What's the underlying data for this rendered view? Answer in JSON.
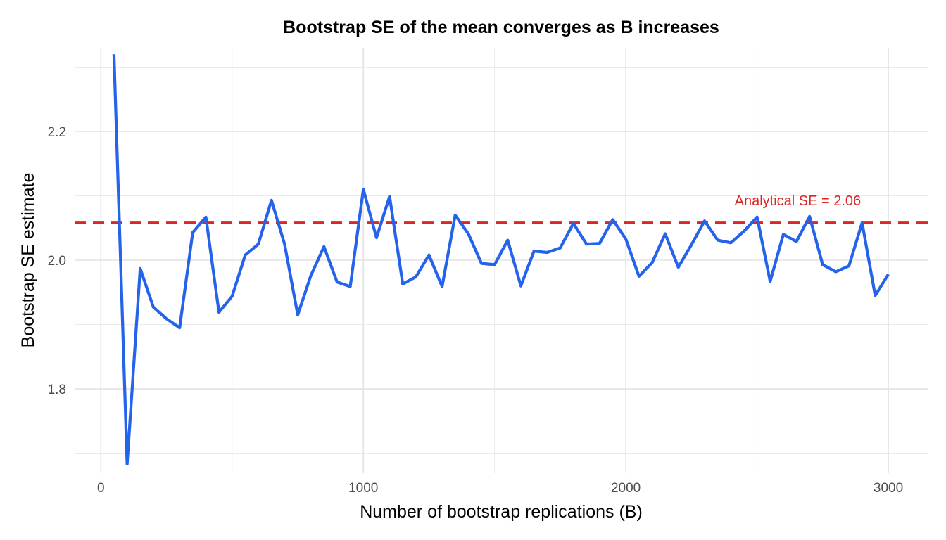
{
  "chart_data": {
    "type": "line",
    "title": "Bootstrap SE of the mean converges as B increases",
    "xlabel": "Number of bootstrap replications (B)",
    "ylabel": "Bootstrap SE estimate",
    "xlim": [
      -100,
      3150
    ],
    "ylim": [
      1.67,
      2.33
    ],
    "x_ticks": [
      0,
      1000,
      2000,
      3000
    ],
    "x_tick_labels": [
      "0",
      "1000",
      "2000",
      "3000"
    ],
    "y_ticks": [
      1.8,
      2.0,
      2.2
    ],
    "y_tick_labels": [
      "1.8",
      "2.0",
      "2.2"
    ],
    "grid": true,
    "series": [
      {
        "color": "#2563EB",
        "x": [
          50,
          100,
          150,
          200,
          250,
          300,
          350,
          400,
          450,
          500,
          550,
          600,
          650,
          700,
          750,
          800,
          850,
          900,
          950,
          1000,
          1050,
          1100,
          1150,
          1200,
          1250,
          1300,
          1350,
          1400,
          1450,
          1500,
          1550,
          1600,
          1650,
          1700,
          1750,
          1800,
          1850,
          1900,
          1950,
          2000,
          2050,
          2100,
          2150,
          2200,
          2250,
          2300,
          2350,
          2400,
          2450,
          2500,
          2550,
          2600,
          2650,
          2700,
          2750,
          2800,
          2850,
          2900,
          2950,
          3000
        ],
        "y": [
          2.32,
          1.683,
          1.987,
          1.927,
          1.909,
          1.895,
          2.043,
          2.067,
          1.919,
          1.944,
          2.008,
          2.025,
          2.093,
          2.025,
          1.915,
          1.976,
          2.021,
          1.966,
          1.959,
          2.11,
          2.035,
          2.099,
          1.963,
          1.974,
          2.008,
          1.959,
          2.07,
          2.041,
          1.995,
          1.993,
          2.031,
          1.96,
          2.014,
          2.012,
          2.019,
          2.057,
          2.025,
          2.026,
          2.063,
          2.033,
          1.975,
          1.996,
          2.041,
          1.989,
          2.024,
          2.061,
          2.031,
          2.027,
          2.045,
          2.067,
          1.967,
          2.04,
          2.029,
          2.068,
          1.993,
          1.982,
          1.991,
          2.058,
          1.945,
          1.978
        ]
      }
    ],
    "reference_line": {
      "y": 2.058,
      "color": "#DC2626",
      "style": "dashed",
      "label": "Analytical SE = 2.06",
      "label_x": 2655,
      "label_y": 2.093
    }
  }
}
